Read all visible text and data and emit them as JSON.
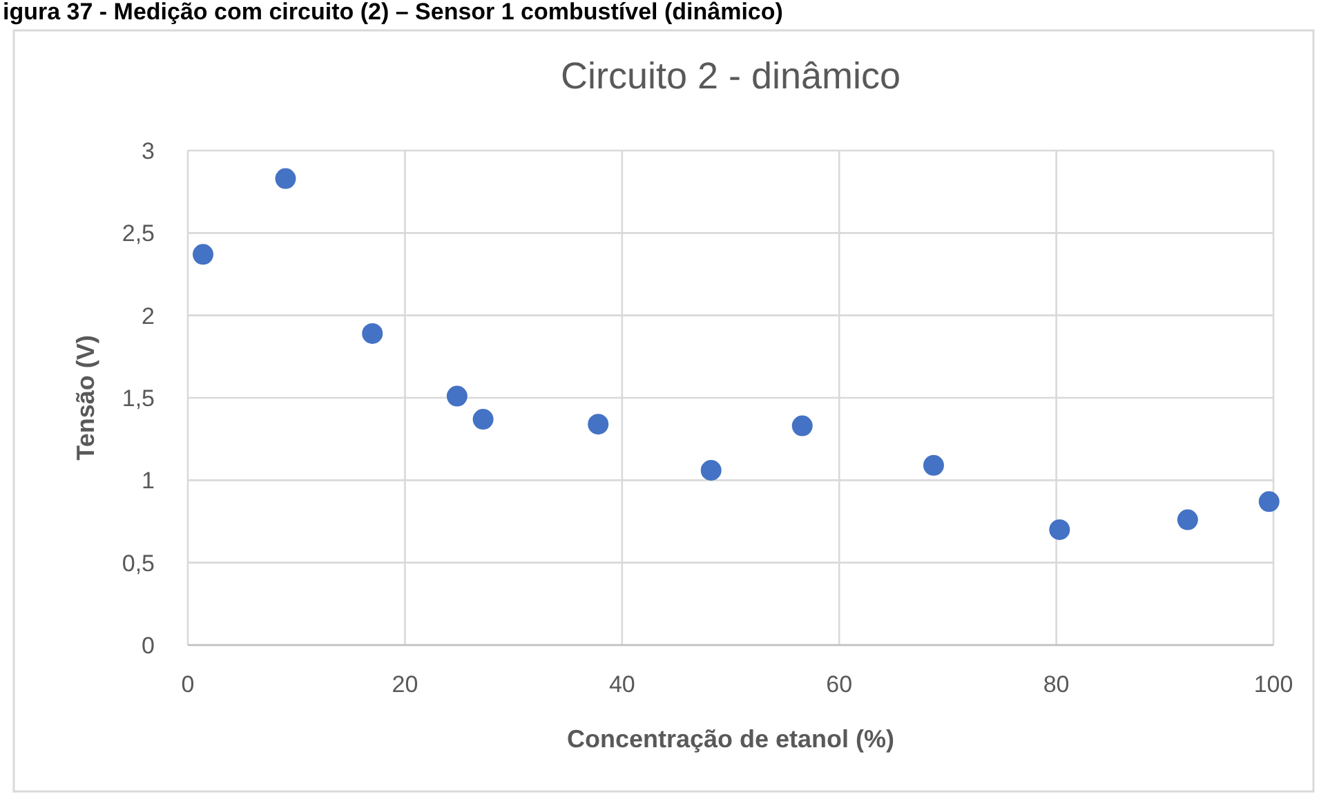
{
  "chart_data": {
    "type": "scatter",
    "title": "Circuito 2 - dinâmico",
    "xlabel": "Concentração de etanol (%)",
    "ylabel": "Tensão (V)",
    "annotations": [
      "igura 37 - Medição com circuito (2) – Sensor 1 combustível (dinâmico)"
    ],
    "x": [
      1.4,
      9.0,
      17.0,
      24.8,
      27.2,
      37.8,
      48.2,
      56.6,
      68.7,
      80.3,
      92.1,
      99.6
    ],
    "series": [
      {
        "color": "#4472c4",
        "values": [
          2.37,
          2.83,
          1.89,
          1.51,
          1.37,
          1.34,
          1.06,
          1.33,
          1.09,
          0.7,
          0.76,
          0.87
        ]
      }
    ],
    "xlim": [
      0,
      100
    ],
    "xticks": [
      0,
      20,
      40,
      60,
      80,
      100
    ],
    "ylim": [
      0,
      3
    ],
    "yticks": [
      0,
      {
        "value": 0.5,
        "label": "0,5"
      },
      1,
      {
        "value": 1.5,
        "label": "1,5"
      },
      2,
      {
        "value": 2.5,
        "label": "2,5"
      },
      3
    ],
    "grid": true,
    "marker": "circle"
  }
}
